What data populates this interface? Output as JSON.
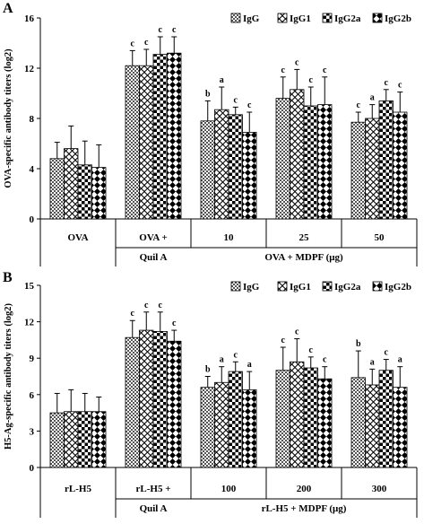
{
  "legend_items": [
    {
      "name": "IgG",
      "pattern": "pat-igg"
    },
    {
      "name": "IgG1",
      "pattern": "pat-igg1"
    },
    {
      "name": "IgG2a",
      "pattern": "pat-igg2a"
    },
    {
      "name": "IgG2b",
      "pattern": "pat-igg2b"
    }
  ],
  "chart_data": [
    {
      "type": "bar",
      "panel_label": "A",
      "ylabel": "OVA-specific antibody titers (log2)",
      "ylim": [
        0,
        16
      ],
      "yticks": [
        0,
        4,
        8,
        12,
        16
      ],
      "legend_placement": "top-right",
      "categories": [
        "OVA",
        "OVA + Quil A",
        "10",
        "25",
        "50"
      ],
      "category_labels": [
        {
          "line1": "OVA",
          "line2": ""
        },
        {
          "line1": "OVA +",
          "line2": "Quil A"
        },
        {
          "line1": "10",
          "line2": ""
        },
        {
          "line1": "25",
          "line2": ""
        },
        {
          "line1": "50",
          "line2": ""
        }
      ],
      "group_label": "OVA + MDPF (μg)",
      "series": [
        {
          "name": "IgG",
          "values": [
            4.8,
            12.2,
            7.8,
            9.6,
            7.7
          ],
          "errors": [
            1.3,
            1.2,
            1.6,
            1.7,
            0.8
          ],
          "letters": [
            "",
            "c",
            "b",
            "c",
            "c"
          ]
        },
        {
          "name": "IgG1",
          "values": [
            5.6,
            12.2,
            8.7,
            10.3,
            8.0
          ],
          "errors": [
            1.8,
            1.3,
            1.8,
            1.6,
            1.1
          ],
          "letters": [
            "",
            "c",
            "a",
            "c",
            "a"
          ]
        },
        {
          "name": "IgG2a",
          "values": [
            4.3,
            13.1,
            8.3,
            9.0,
            9.4
          ],
          "errors": [
            1.9,
            1.4,
            0.6,
            1.5,
            0.9
          ],
          "letters": [
            "",
            "c",
            "c",
            "c",
            "c"
          ]
        },
        {
          "name": "IgG2b",
          "values": [
            4.1,
            13.2,
            6.9,
            9.1,
            8.5
          ],
          "errors": [
            1.8,
            1.3,
            1.6,
            2.2,
            1.6
          ],
          "letters": [
            "",
            "c",
            "c",
            "c",
            "c"
          ]
        }
      ]
    },
    {
      "type": "bar",
      "panel_label": "B",
      "ylabel": "H5-Ag-specific antibody titers (log2)",
      "ylim": [
        0,
        15
      ],
      "yticks": [
        0,
        3,
        6,
        9,
        12,
        15
      ],
      "legend_placement": "top-right",
      "categories": [
        "rL-H5",
        "rL-H5 + Quil A",
        "100",
        "200",
        "300"
      ],
      "category_labels": [
        {
          "line1": "rL-H5",
          "line2": ""
        },
        {
          "line1": "rL-H5 +",
          "line2": "Quil A"
        },
        {
          "line1": "100",
          "line2": ""
        },
        {
          "line1": "200",
          "line2": ""
        },
        {
          "line1": "300",
          "line2": ""
        }
      ],
      "group_label": "rL-H5 + MDPF (μg)",
      "series": [
        {
          "name": "IgG",
          "values": [
            4.5,
            10.7,
            6.6,
            8.0,
            7.4
          ],
          "errors": [
            1.6,
            1.4,
            0.9,
            1.9,
            2.2
          ],
          "letters": [
            "",
            "c",
            "b",
            "c",
            "b"
          ]
        },
        {
          "name": "IgG1",
          "values": [
            4.6,
            11.3,
            7.0,
            8.7,
            6.8
          ],
          "errors": [
            1.8,
            1.5,
            1.3,
            1.9,
            1.3
          ],
          "letters": [
            "",
            "c",
            "a",
            "c",
            "a"
          ]
        },
        {
          "name": "IgG2a",
          "values": [
            4.6,
            11.2,
            7.9,
            8.2,
            8.0
          ],
          "errors": [
            1.5,
            1.6,
            0.8,
            0.9,
            0.9
          ],
          "letters": [
            "",
            "c",
            "c",
            "c",
            "c"
          ]
        },
        {
          "name": "IgG2b",
          "values": [
            4.6,
            10.4,
            6.4,
            7.3,
            6.6
          ],
          "errors": [
            1.2,
            0.9,
            1.5,
            1.0,
            1.7
          ],
          "letters": [
            "",
            "c",
            "a",
            "c",
            "a"
          ]
        }
      ]
    }
  ]
}
